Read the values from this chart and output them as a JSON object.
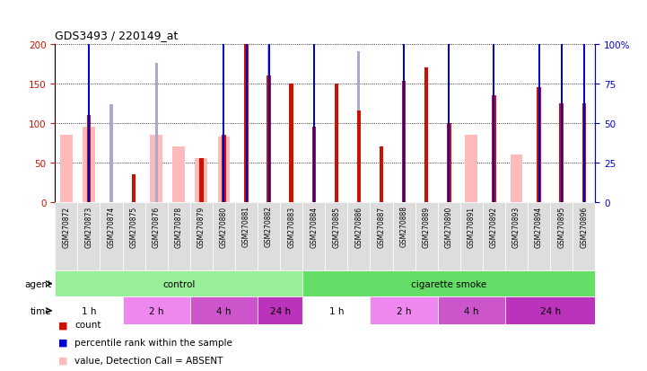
{
  "title": "GDS3493 / 220149_at",
  "samples": [
    "GSM270872",
    "GSM270873",
    "GSM270874",
    "GSM270875",
    "GSM270876",
    "GSM270878",
    "GSM270879",
    "GSM270880",
    "GSM270881",
    "GSM270882",
    "GSM270883",
    "GSM270884",
    "GSM270885",
    "GSM270886",
    "GSM270887",
    "GSM270888",
    "GSM270889",
    "GSM270890",
    "GSM270891",
    "GSM270892",
    "GSM270893",
    "GSM270894",
    "GSM270895",
    "GSM270896"
  ],
  "bar_data": [
    {
      "sample": "GSM270872",
      "count": null,
      "rank": null,
      "value_abs": 85,
      "rank_abs": null
    },
    {
      "sample": "GSM270873",
      "count": 110,
      "rank": 110,
      "value_abs": 95,
      "rank_abs": null
    },
    {
      "sample": "GSM270874",
      "count": null,
      "rank": null,
      "value_abs": null,
      "rank_abs": 62
    },
    {
      "sample": "GSM270875",
      "count": 35,
      "rank": null,
      "value_abs": null,
      "rank_abs": null
    },
    {
      "sample": "GSM270876",
      "count": null,
      "rank": null,
      "value_abs": 85,
      "rank_abs": 88
    },
    {
      "sample": "GSM270878",
      "count": null,
      "rank": null,
      "value_abs": 70,
      "rank_abs": null
    },
    {
      "sample": "GSM270879",
      "count": 55,
      "rank": null,
      "value_abs": 55,
      "rank_abs": null
    },
    {
      "sample": "GSM270880",
      "count": 85,
      "rank": 105,
      "value_abs": 83,
      "rank_abs": null
    },
    {
      "sample": "GSM270881",
      "count": 200,
      "rank": 130,
      "value_abs": null,
      "rank_abs": null
    },
    {
      "sample": "GSM270882",
      "count": 160,
      "rank": 125,
      "value_abs": null,
      "rank_abs": 110
    },
    {
      "sample": "GSM270883",
      "count": 150,
      "rank": null,
      "value_abs": null,
      "rank_abs": null
    },
    {
      "sample": "GSM270884",
      "count": 95,
      "rank": 107,
      "value_abs": null,
      "rank_abs": null
    },
    {
      "sample": "GSM270885",
      "count": 150,
      "rank": null,
      "value_abs": null,
      "rank_abs": null
    },
    {
      "sample": "GSM270886",
      "count": 115,
      "rank": null,
      "value_abs": null,
      "rank_abs": 95
    },
    {
      "sample": "GSM270887",
      "count": 70,
      "rank": null,
      "value_abs": null,
      "rank_abs": null
    },
    {
      "sample": "GSM270888",
      "count": 153,
      "rank": 123,
      "value_abs": null,
      "rank_abs": null
    },
    {
      "sample": "GSM270889",
      "count": 170,
      "rank": null,
      "value_abs": null,
      "rank_abs": null
    },
    {
      "sample": "GSM270890",
      "count": 100,
      "rank": 110,
      "value_abs": null,
      "rank_abs": null
    },
    {
      "sample": "GSM270891",
      "count": null,
      "rank": null,
      "value_abs": 85,
      "rank_abs": null
    },
    {
      "sample": "GSM270892",
      "count": 135,
      "rank": 123,
      "value_abs": null,
      "rank_abs": null
    },
    {
      "sample": "GSM270893",
      "count": null,
      "rank": null,
      "value_abs": 60,
      "rank_abs": null
    },
    {
      "sample": "GSM270894",
      "count": 145,
      "rank": 125,
      "value_abs": null,
      "rank_abs": null
    },
    {
      "sample": "GSM270895",
      "count": 125,
      "rank": 122,
      "value_abs": null,
      "rank_abs": null
    },
    {
      "sample": "GSM270896",
      "count": 125,
      "rank": 118,
      "value_abs": null,
      "rank_abs": null
    }
  ],
  "ylim_left": [
    0,
    200
  ],
  "ylim_right": [
    0,
    100
  ],
  "yticks_left": [
    0,
    50,
    100,
    150,
    200
  ],
  "yticks_right": [
    0,
    25,
    50,
    75,
    100
  ],
  "ytick_labels_left": [
    "0",
    "50",
    "100",
    "150",
    "200"
  ],
  "ytick_labels_right": [
    "0",
    "25",
    "50",
    "75",
    "100%"
  ],
  "color_count": "#cc1100",
  "color_rank": "#0000cc",
  "color_value_absent": "#ffbbbb",
  "color_rank_absent": "#aaaacc",
  "color_axis_left": "#cc1100",
  "color_axis_right": "#0000cc",
  "agent_groups": [
    {
      "label": "control",
      "start": 0,
      "end": 11,
      "color": "#99ee99"
    },
    {
      "label": "cigarette smoke",
      "start": 11,
      "end": 24,
      "color": "#66dd66"
    }
  ],
  "time_groups": [
    {
      "label": "1 h",
      "start": 0,
      "end": 3,
      "color": "#ffffff"
    },
    {
      "label": "2 h",
      "start": 3,
      "end": 6,
      "color": "#ee88ee"
    },
    {
      "label": "4 h",
      "start": 6,
      "end": 9,
      "color": "#cc55cc"
    },
    {
      "label": "24 h",
      "start": 9,
      "end": 11,
      "color": "#bb33bb"
    },
    {
      "label": "1 h",
      "start": 11,
      "end": 14,
      "color": "#ffffff"
    },
    {
      "label": "2 h",
      "start": 14,
      "end": 17,
      "color": "#ee88ee"
    },
    {
      "label": "4 h",
      "start": 17,
      "end": 20,
      "color": "#cc55cc"
    },
    {
      "label": "24 h",
      "start": 20,
      "end": 24,
      "color": "#bb33bb"
    }
  ],
  "legend_items": [
    {
      "label": "count",
      "color": "#cc1100"
    },
    {
      "label": "percentile rank within the sample",
      "color": "#0000cc"
    },
    {
      "label": "value, Detection Call = ABSENT",
      "color": "#ffbbbb"
    },
    {
      "label": "rank, Detection Call = ABSENT",
      "color": "#aaaacc"
    }
  ]
}
